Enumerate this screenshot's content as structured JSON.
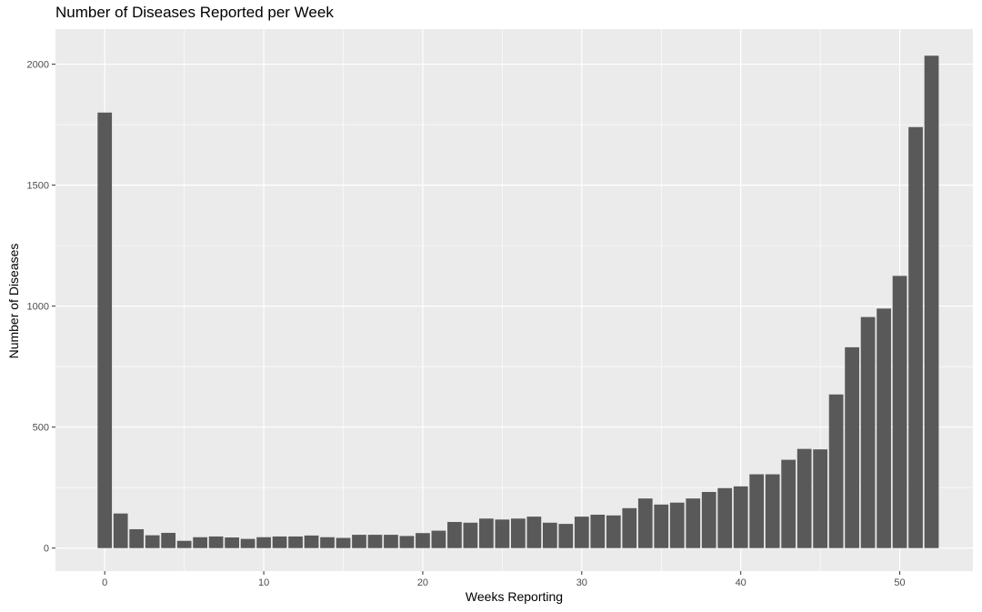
{
  "chart_data": {
    "type": "bar",
    "title": "Number of Diseases Reported per Week",
    "xlabel": "Weeks Reporting",
    "ylabel": "Number of Diseases",
    "xlim": [
      -3.1,
      54.6
    ],
    "ylim": [
      -95,
      2145
    ],
    "x_ticks": [
      0,
      10,
      20,
      30,
      40,
      50
    ],
    "y_ticks": [
      0,
      500,
      1000,
      1500,
      2000
    ],
    "grid": true,
    "x": [
      0,
      1,
      2,
      3,
      4,
      5,
      6,
      7,
      8,
      9,
      10,
      11,
      12,
      13,
      14,
      15,
      16,
      17,
      18,
      19,
      20,
      21,
      22,
      23,
      24,
      25,
      26,
      27,
      28,
      29,
      30,
      31,
      32,
      33,
      34,
      35,
      36,
      37,
      38,
      39,
      40,
      41,
      42,
      43,
      44,
      45,
      46,
      47,
      48,
      49,
      50,
      51,
      52
    ],
    "values": [
      1800,
      143,
      78,
      53,
      63,
      30,
      45,
      48,
      44,
      38,
      45,
      48,
      48,
      52,
      45,
      42,
      55,
      55,
      55,
      50,
      62,
      72,
      108,
      105,
      122,
      118,
      122,
      130,
      105,
      100,
      130,
      138,
      135,
      165,
      205,
      180,
      188,
      205,
      232,
      248,
      255,
      305,
      305,
      365,
      410,
      408,
      635,
      830,
      955,
      990,
      1125,
      1740,
      2035
    ]
  }
}
